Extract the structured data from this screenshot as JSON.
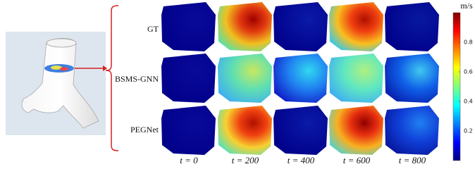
{
  "rows": [
    "GT",
    "BSMS-GNN",
    "PEGNet"
  ],
  "columns": [
    "t = 0",
    "t = 200",
    "t = 400",
    "t = 600",
    "t = 800"
  ],
  "colorbar": {
    "unit": "m/s",
    "lim": [
      0,
      1
    ],
    "ticks": [
      0.2,
      0.4,
      0.6,
      0.8
    ]
  }
}
